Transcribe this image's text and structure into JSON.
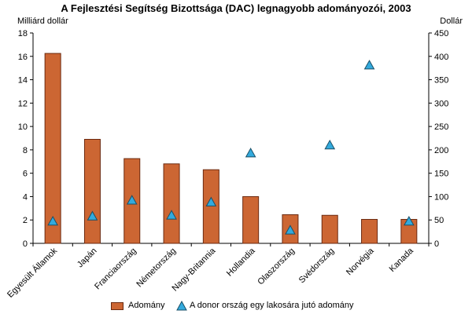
{
  "chart_data": {
    "type": "bar",
    "title": "A Fejlesztési Segítség Bizottsága (DAC) legnagyobb adományozói, 2003",
    "ylabel_left": "Milliárd dollár",
    "ylabel_right": "Dollár",
    "ylim_left": [
      0,
      18
    ],
    "ylim_right": [
      0,
      450
    ],
    "yticks_left": [
      0,
      2,
      4,
      6,
      8,
      10,
      12,
      14,
      16,
      18
    ],
    "yticks_right": [
      0,
      50,
      100,
      150,
      200,
      250,
      300,
      350,
      400,
      450
    ],
    "grid": false,
    "legend_position": "bottom",
    "categories": [
      "Egyesült Államok",
      "Japán",
      "Franciaország",
      "Németország",
      "Nagy-Britannia",
      "Hollandia",
      "Olaszország",
      "Svédország",
      "Norvégia",
      "Kanada"
    ],
    "series": [
      {
        "name": "Adomány",
        "type": "bar",
        "axis": "left",
        "color": "#cc6633",
        "values": [
          16.25,
          8.9,
          7.25,
          6.8,
          6.3,
          4.0,
          2.45,
          2.4,
          2.05,
          2.05
        ]
      },
      {
        "name": "A donor ország egy lakosára jutó adomány",
        "type": "scatter",
        "axis": "right",
        "marker": "triangle",
        "color": "#33aadd",
        "values": [
          47,
          58,
          92,
          60,
          88,
          193,
          28,
          210,
          381,
          47
        ]
      }
    ]
  }
}
